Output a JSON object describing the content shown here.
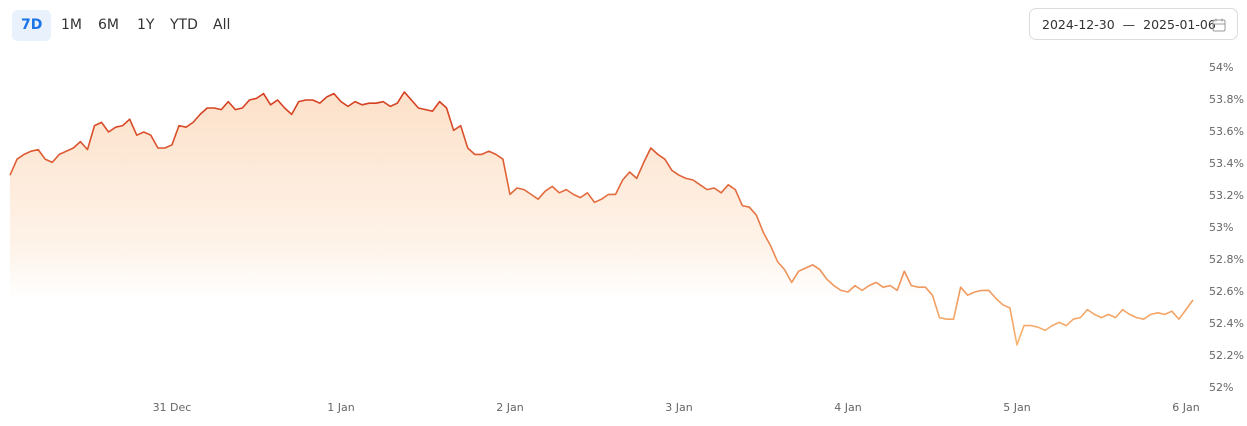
{
  "range_buttons": [
    "7D",
    "1M",
    "6M",
    "1Y",
    "YTD",
    "All"
  ],
  "selected_range": 0,
  "date_range": {
    "start": "2024-12-30",
    "separator": "—",
    "end": "2025-01-06"
  },
  "chart_data": {
    "type": "line",
    "categories": [
      null,
      null,
      null,
      null,
      null,
      null,
      null,
      null,
      null,
      null,
      null,
      null,
      null,
      null,
      null,
      null,
      null,
      null,
      null,
      null,
      null,
      null,
      null,
      "31 Dec",
      null,
      null,
      null,
      null,
      null,
      null,
      null,
      null,
      null,
      null,
      null,
      null,
      null,
      null,
      null,
      null,
      null,
      null,
      null,
      null,
      null,
      null,
      null,
      "1 Jan",
      null,
      null,
      null,
      null,
      null,
      null,
      null,
      null,
      null,
      null,
      null,
      null,
      null,
      null,
      null,
      null,
      null,
      null,
      null,
      null,
      null,
      null,
      null,
      "2 Jan",
      null,
      null,
      null,
      null,
      null,
      null,
      null,
      null,
      null,
      null,
      null,
      null,
      null,
      null,
      null,
      null,
      null,
      null,
      null,
      null,
      null,
      null,
      null,
      "3 Jan",
      null,
      null,
      null,
      null,
      null,
      null,
      null,
      null,
      null,
      null,
      null,
      null,
      null,
      null,
      null,
      null,
      null,
      null,
      null,
      null,
      null,
      null,
      null,
      "4 Jan",
      null,
      null,
      null,
      null,
      null,
      null,
      null,
      null,
      null,
      null,
      null,
      null,
      null,
      null,
      null,
      null,
      null,
      null,
      null,
      null,
      null,
      null,
      null,
      "5 Jan",
      null,
      null,
      null,
      null,
      null,
      null,
      null,
      null,
      null,
      null,
      null,
      null,
      null,
      null,
      null,
      null,
      null,
      null,
      null,
      null,
      null,
      null,
      null,
      "6 Jan",
      null
    ],
    "values": [
      53.33,
      53.43,
      53.46,
      53.48,
      53.49,
      53.43,
      53.41,
      53.46,
      53.48,
      53.5,
      53.54,
      53.49,
      53.64,
      53.66,
      53.6,
      53.63,
      53.64,
      53.68,
      53.58,
      53.6,
      53.58,
      53.5,
      53.5,
      53.52,
      53.64,
      53.63,
      53.66,
      53.71,
      53.75,
      53.75,
      53.74,
      53.79,
      53.74,
      53.75,
      53.8,
      53.81,
      53.84,
      53.77,
      53.8,
      53.75,
      53.71,
      53.79,
      53.8,
      53.8,
      53.78,
      53.82,
      53.84,
      53.79,
      53.76,
      53.79,
      53.77,
      53.78,
      53.78,
      53.79,
      53.76,
      53.78,
      53.85,
      53.8,
      53.75,
      53.74,
      53.73,
      53.79,
      53.75,
      53.61,
      53.64,
      53.5,
      53.46,
      53.46,
      53.48,
      53.46,
      53.43,
      53.21,
      53.25,
      53.24,
      53.21,
      53.18,
      53.23,
      53.26,
      53.22,
      53.24,
      53.21,
      53.19,
      53.22,
      53.16,
      53.18,
      53.21,
      53.21,
      53.3,
      53.35,
      53.31,
      53.41,
      53.5,
      53.46,
      53.43,
      53.36,
      53.33,
      53.31,
      53.3,
      53.27,
      53.24,
      53.25,
      53.22,
      53.27,
      53.24,
      53.14,
      53.13,
      53.08,
      52.97,
      52.89,
      52.79,
      52.74,
      52.66,
      52.73,
      52.75,
      52.77,
      52.74,
      52.68,
      52.64,
      52.61,
      52.6,
      52.64,
      52.61,
      52.64,
      52.66,
      52.63,
      52.64,
      52.61,
      52.73,
      52.64,
      52.63,
      52.63,
      52.58,
      52.44,
      52.43,
      52.43,
      52.63,
      52.58,
      52.6,
      52.61,
      52.61,
      52.56,
      52.52,
      52.5,
      52.27,
      52.39,
      52.39,
      52.38,
      52.36,
      52.39,
      52.41,
      52.39,
      52.43,
      52.44,
      52.49,
      52.46,
      52.44,
      52.46,
      52.44,
      52.49,
      52.46,
      52.44,
      52.43,
      52.46,
      52.47,
      52.46,
      52.48,
      52.43,
      52.49,
      52.55
    ],
    "line_colors": [
      "#d43a1c",
      "#f8b672"
    ],
    "area_color": "#fcdcc0",
    "ylim": [
      52,
      54
    ],
    "yticks": [
      {
        "value": 54,
        "label": "54%"
      },
      {
        "value": 53.8,
        "label": "53.8%"
      },
      {
        "value": 53.6,
        "label": "53.6%"
      },
      {
        "value": 53.4,
        "label": "53.4%"
      },
      {
        "value": 53.2,
        "label": "53.2%"
      },
      {
        "value": 53,
        "label": "53%"
      },
      {
        "value": 52.8,
        "label": "52.8%"
      },
      {
        "value": 52.6,
        "label": "52.6%"
      },
      {
        "value": 52.4,
        "label": "52.4%"
      },
      {
        "value": 52.2,
        "label": "52.2%"
      },
      {
        "value": 52,
        "label": "52%"
      }
    ]
  }
}
